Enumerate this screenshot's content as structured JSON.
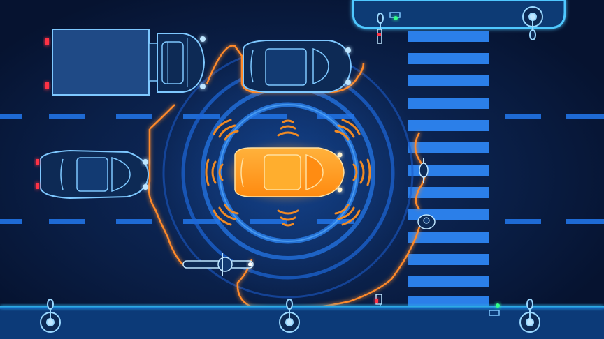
{
  "scene": {
    "kind": "autonomous-vehicle-sensor-illustration",
    "colors": {
      "road": "#0a1f45",
      "road_dark": "#061535",
      "lane_marking": "#1f6fd8",
      "crosswalk": "#2a7de8",
      "outline_blue": "#7ec8ff",
      "glow_blue": "#2b8cff",
      "ego_car": "#ff9a1a",
      "ego_car_light": "#ffc04d",
      "sensor_orange": "#f08a24",
      "radar_ring": "#1b5fd0",
      "curb": "#27b7ff",
      "tail_light": "#ff3344",
      "signal_green": "#33ff88"
    },
    "icons": [
      "truck-icon",
      "car-icon",
      "ego-car-icon",
      "motorcycle-icon",
      "cyclist-icon",
      "pedestrian-icon",
      "street-lamp-icon",
      "sensor-wave-icon"
    ]
  }
}
